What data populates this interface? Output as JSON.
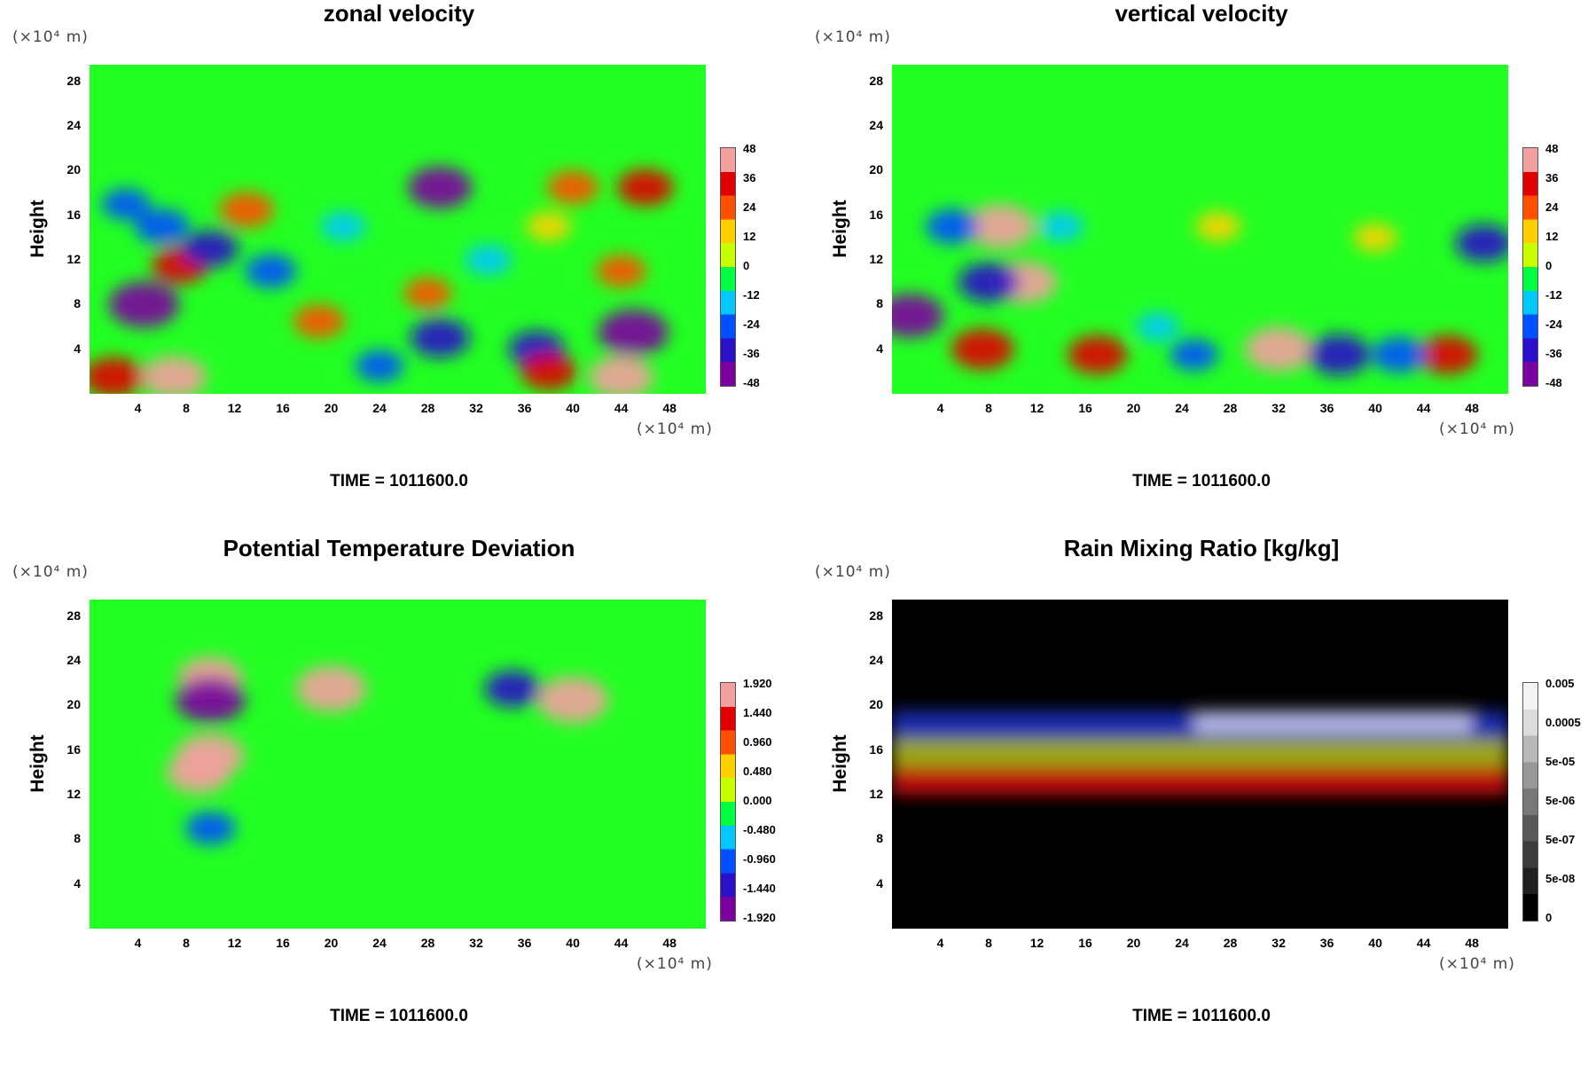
{
  "chart_data": [
    {
      "type": "heatmap",
      "title": "zonal velocity",
      "ylabel": "Height",
      "xlabel": "",
      "x_unit": "(×10⁴ m)",
      "y_unit": "(×10⁴ m)",
      "xlim": [
        0,
        51
      ],
      "ylim": [
        0,
        29.5
      ],
      "xticks": [
        "4",
        "8",
        "12",
        "16",
        "20",
        "24",
        "28",
        "32",
        "36",
        "40",
        "44",
        "48"
      ],
      "yticks": [
        "4",
        "8",
        "12",
        "16",
        "20",
        "24",
        "28"
      ],
      "colorbar_labels": [
        "48",
        "36",
        "24",
        "12",
        "0",
        "-12",
        "-24",
        "-36",
        "-48"
      ],
      "colormap": "rainbow",
      "time_label": "TIME = 1011600.0",
      "features": [
        {
          "x": 4.5,
          "y": 8,
          "value": -48
        },
        {
          "x": 2,
          "y": 1.5,
          "value": 36
        },
        {
          "x": 7,
          "y": 1.5,
          "value": 40
        },
        {
          "x": 19,
          "y": 6.5,
          "value": 24
        },
        {
          "x": 28,
          "y": 9,
          "value": 20
        },
        {
          "x": 29,
          "y": 18.5,
          "value": -40
        },
        {
          "x": 45,
          "y": 5.5,
          "value": -48
        },
        {
          "x": 44,
          "y": 1.5,
          "value": 40
        },
        {
          "x": 7.5,
          "y": 11.5,
          "value": 30
        },
        {
          "x": 10,
          "y": 13,
          "value": -30
        },
        {
          "x": 6,
          "y": 15,
          "value": -28
        },
        {
          "x": 3,
          "y": 17,
          "value": -20
        },
        {
          "x": 15,
          "y": 11,
          "value": -24
        },
        {
          "x": 29,
          "y": 5,
          "value": -34
        },
        {
          "x": 37,
          "y": 4,
          "value": -30
        },
        {
          "x": 40,
          "y": 18.5,
          "value": 24
        },
        {
          "x": 46,
          "y": 18.5,
          "value": 30
        },
        {
          "x": 13,
          "y": 16.5,
          "value": 28
        },
        {
          "x": 24,
          "y": 2.5,
          "value": -20
        },
        {
          "x": 38,
          "y": 2,
          "value": 30
        },
        {
          "x": 33,
          "y": 12,
          "value": -18
        },
        {
          "x": 44,
          "y": 11,
          "value": 22
        },
        {
          "x": 21,
          "y": 15,
          "value": -16
        },
        {
          "x": 38,
          "y": 15,
          "value": 16
        }
      ]
    },
    {
      "type": "heatmap",
      "title": "vertical velocity",
      "ylabel": "Height",
      "xlabel": "",
      "x_unit": "(×10⁴ m)",
      "y_unit": "(×10⁴ m)",
      "xlim": [
        0,
        51
      ],
      "ylim": [
        0,
        29.5
      ],
      "xticks": [
        "4",
        "8",
        "12",
        "16",
        "20",
        "24",
        "28",
        "32",
        "36",
        "40",
        "44",
        "48"
      ],
      "yticks": [
        "4",
        "8",
        "12",
        "16",
        "20",
        "24",
        "28"
      ],
      "colorbar_labels": [
        "48",
        "36",
        "24",
        "12",
        "0",
        "-12",
        "-24",
        "-36",
        "-48"
      ],
      "colormap": "rainbow",
      "time_label": "TIME = 1011600.0",
      "features": [
        {
          "x": 7.5,
          "y": 4,
          "value": 38
        },
        {
          "x": 17,
          "y": 3.5,
          "value": 34
        },
        {
          "x": 32,
          "y": 4,
          "value": 44
        },
        {
          "x": 46,
          "y": 3.5,
          "value": 34
        },
        {
          "x": 9,
          "y": 15,
          "value": 44
        },
        {
          "x": 11,
          "y": 10,
          "value": 40
        },
        {
          "x": 8,
          "y": 10,
          "value": -36
        },
        {
          "x": 1.5,
          "y": 7,
          "value": -44
        },
        {
          "x": 37,
          "y": 3.5,
          "value": -38
        },
        {
          "x": 42,
          "y": 3.5,
          "value": -28
        },
        {
          "x": 25,
          "y": 3.5,
          "value": -20
        },
        {
          "x": 22,
          "y": 6,
          "value": -14
        },
        {
          "x": 49,
          "y": 13.5,
          "value": -32
        },
        {
          "x": 5,
          "y": 15,
          "value": -26
        },
        {
          "x": 27,
          "y": 15,
          "value": 16
        },
        {
          "x": 40,
          "y": 14,
          "value": 14
        },
        {
          "x": 14,
          "y": 15,
          "value": -16
        }
      ]
    },
    {
      "type": "heatmap",
      "title": "Potential Temperature Deviation",
      "ylabel": "Height",
      "xlabel": "",
      "x_unit": "(×10⁴ m)",
      "y_unit": "(×10⁴ m)",
      "xlim": [
        0,
        51
      ],
      "ylim": [
        0,
        29.5
      ],
      "xticks": [
        "4",
        "8",
        "12",
        "16",
        "20",
        "24",
        "28",
        "32",
        "36",
        "40",
        "44",
        "48"
      ],
      "yticks": [
        "4",
        "8",
        "12",
        "16",
        "20",
        "24",
        "28"
      ],
      "colorbar_labels": [
        "1.920",
        "1.440",
        "0.960",
        "0.480",
        "0.000",
        "-0.480",
        "-0.960",
        "-1.440",
        "-1.920"
      ],
      "colormap": "rainbow",
      "time_label": "TIME = 1011600.0",
      "features": [
        {
          "x": 9,
          "y": 14,
          "value": 1.6
        },
        {
          "x": 10,
          "y": 15.5,
          "value": 1.8
        },
        {
          "x": 10,
          "y": 9,
          "value": -0.9
        },
        {
          "x": 10,
          "y": 22.5,
          "value": 1.6
        },
        {
          "x": 20,
          "y": 21.5,
          "value": 1.92
        },
        {
          "x": 10,
          "y": 20.5,
          "value": -1.9
        },
        {
          "x": 40,
          "y": 20.5,
          "value": 1.92
        },
        {
          "x": 35,
          "y": 21.5,
          "value": -1.2
        }
      ]
    },
    {
      "type": "heatmap",
      "title": "Rain Mixing Ratio [kg/kg]",
      "ylabel": "Height",
      "xlabel": "",
      "x_unit": "(×10⁴ m)",
      "y_unit": "(×10⁴ m)",
      "xlim": [
        0,
        51
      ],
      "ylim": [
        0,
        29.5
      ],
      "xticks": [
        "4",
        "8",
        "12",
        "16",
        "20",
        "24",
        "28",
        "32",
        "36",
        "40",
        "44",
        "48"
      ],
      "yticks": [
        "4",
        "8",
        "12",
        "16",
        "20",
        "24",
        "28"
      ],
      "colorbar_labels": [
        "0.005",
        "0.0005",
        "5e-05",
        "5e-06",
        "5e-07",
        "5e-08",
        "0"
      ],
      "colormap": "grayscale",
      "time_label": "TIME = 1011600.0",
      "features": []
    }
  ]
}
